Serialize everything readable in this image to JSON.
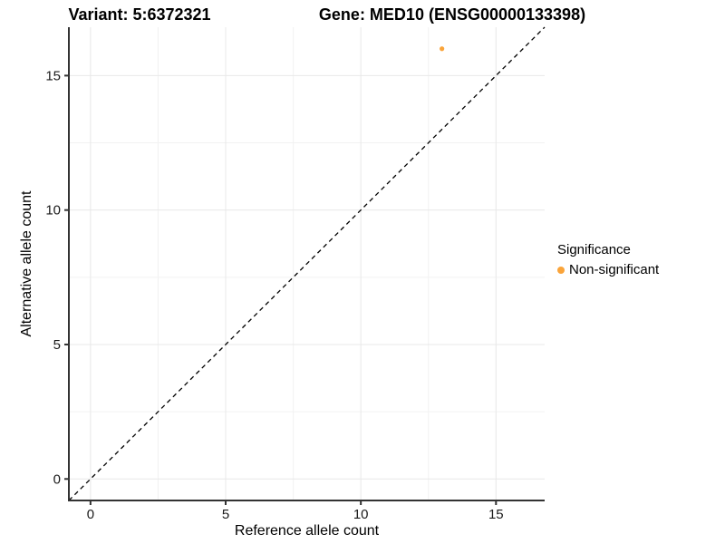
{
  "header": {
    "variant_title": "Variant: 5:6372321",
    "gene_title": "Gene: MED10 (ENSG00000133398)"
  },
  "legend": {
    "title": "Significance",
    "items": [
      {
        "label": "Non-significant",
        "color": "#FAA43A"
      }
    ]
  },
  "chart_data": {
    "type": "scatter",
    "title": "Variant: 5:6372321   Gene: MED10 (ENSG00000133398)",
    "xlabel": "Reference allele count",
    "ylabel": "Alternative allele count",
    "xlim": [
      -0.8,
      16.8
    ],
    "ylim": [
      -0.8,
      16.8
    ],
    "x_ticks": [
      0,
      5,
      10,
      15
    ],
    "y_ticks": [
      0,
      5,
      10,
      15
    ],
    "x_minor_ticks": [
      2.5,
      7.5,
      12.5
    ],
    "y_minor_ticks": [
      2.5,
      7.5,
      12.5
    ],
    "grid": true,
    "legend_position": "right",
    "series": [
      {
        "name": "Non-significant",
        "color": "#FAA43A",
        "points": [
          {
            "x": 13,
            "y": 16
          }
        ]
      }
    ],
    "reference_line": {
      "style": "dashed",
      "color": "#000000",
      "from": [
        -0.8,
        -0.8
      ],
      "to": [
        16.8,
        16.8
      ]
    }
  },
  "colors": {
    "axis": "#333333",
    "tick_text": "#1a1a1a",
    "grid_major": "#E8E8E8",
    "grid_minor": "#F2F2F2",
    "background": "#FFFFFF"
  }
}
